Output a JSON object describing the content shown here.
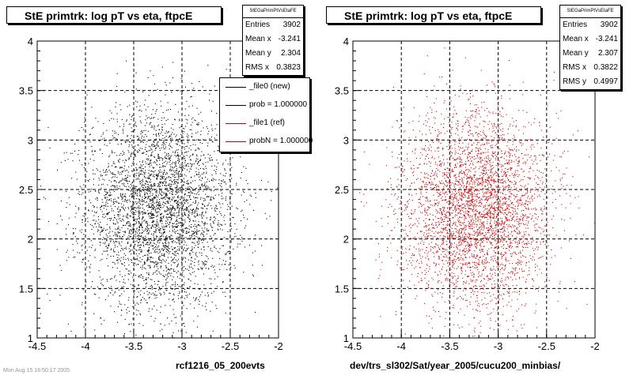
{
  "chart_data": [
    {
      "type": "scatter",
      "title": "StE primtrk: log pT vs eta, ftpcE",
      "xlabel": "rcf1216_05_200evts",
      "ylabel": "",
      "xlim": [
        -4.5,
        -2
      ],
      "ylim": [
        1,
        4
      ],
      "x_ticks": [
        "-4.5",
        "-4",
        "-3.5",
        "-3",
        "-2.5",
        "-2"
      ],
      "y_ticks": [
        "1",
        "1.5",
        "2",
        "2.5",
        "3",
        "3.5",
        "4"
      ],
      "grid": true,
      "point_color": "#000000",
      "points_drawn": 3902,
      "density_center": {
        "x": -3.241,
        "y": 2.304
      },
      "density_spread": {
        "x": 0.3823,
        "y": 0.4997
      },
      "stats": {
        "name": "StEGaPrimPtVsEtaFE",
        "rows": [
          {
            "label": "Entries",
            "value": "3902"
          },
          {
            "label": "Mean x",
            "value": "-3.241"
          },
          {
            "label": "Mean y",
            "value": "2.304"
          },
          {
            "label": "RMS x",
            "value": "0.3823"
          }
        ]
      }
    },
    {
      "type": "scatter",
      "title": "StE primtrk: log pT vs eta, ftpcE",
      "xlabel": "dev/trs_sl302/Sat/year_2005/cucu200_minbias/",
      "ylabel": "",
      "xlim": [
        -4.5,
        -2
      ],
      "ylim": [
        1,
        4
      ],
      "x_ticks": [
        "-4.5",
        "-4",
        "-3.5",
        "-3",
        "-2.5",
        "-2"
      ],
      "y_ticks": [
        "1",
        "1.5",
        "2",
        "2.5",
        "3",
        "3.5",
        "4"
      ],
      "grid": true,
      "point_color": "#cc0000",
      "points_drawn": 3902,
      "density_center": {
        "x": -3.241,
        "y": 2.307
      },
      "density_spread": {
        "x": 0.3822,
        "y": 0.4997
      },
      "stats": {
        "name": "StEGaPrimPtVsEtaFE",
        "rows": [
          {
            "label": "Entries",
            "value": "3902"
          },
          {
            "label": "Mean x",
            "value": "-3.241"
          },
          {
            "label": "Mean y",
            "value": "2.307"
          },
          {
            "label": "RMS x",
            "value": "0.3822"
          },
          {
            "label": "RMS y",
            "value": "0.4997"
          }
        ]
      }
    }
  ],
  "legend": {
    "entries": [
      {
        "label": "_file0 (new)",
        "color": "#000000"
      },
      {
        "label": "prob = 1.000000",
        "color": "#000000"
      },
      {
        "label": "_file1 (ref)",
        "color": "#cc0000"
      },
      {
        "label": "probN = 1.000000",
        "color": "#cc0000"
      }
    ]
  },
  "stamp": "Mon Aug 15 16:50:17 2005"
}
